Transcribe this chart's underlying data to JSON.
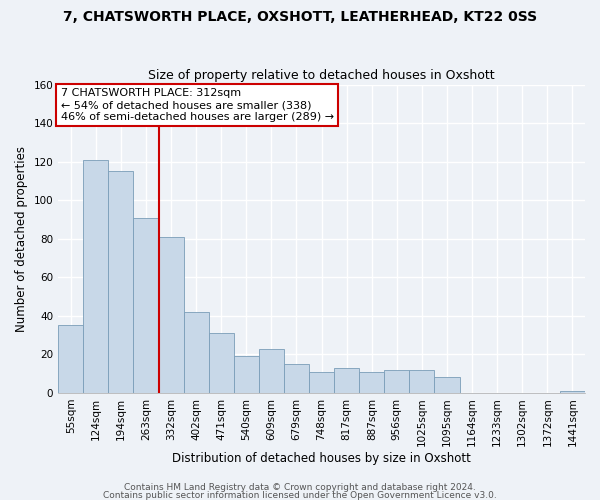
{
  "title": "7, CHATSWORTH PLACE, OXSHOTT, LEATHERHEAD, KT22 0SS",
  "subtitle": "Size of property relative to detached houses in Oxshott",
  "xlabel": "Distribution of detached houses by size in Oxshott",
  "ylabel": "Number of detached properties",
  "bar_labels": [
    "55sqm",
    "124sqm",
    "194sqm",
    "263sqm",
    "332sqm",
    "402sqm",
    "471sqm",
    "540sqm",
    "609sqm",
    "679sqm",
    "748sqm",
    "817sqm",
    "887sqm",
    "956sqm",
    "1025sqm",
    "1095sqm",
    "1164sqm",
    "1233sqm",
    "1302sqm",
    "1372sqm",
    "1441sqm"
  ],
  "bar_values": [
    35,
    121,
    115,
    91,
    81,
    42,
    31,
    19,
    23,
    15,
    11,
    13,
    11,
    12,
    12,
    8,
    0,
    0,
    0,
    0,
    1
  ],
  "bar_color": "#c8d8e8",
  "bar_edge_color": "#7a9db8",
  "marker_color": "#cc0000",
  "annotation_text": "7 CHATSWORTH PLACE: 312sqm\n← 54% of detached houses are smaller (338)\n46% of semi-detached houses are larger (289) →",
  "annotation_box_color": "#ffffff",
  "annotation_box_edge": "#cc0000",
  "ylim": [
    0,
    160
  ],
  "yticks": [
    0,
    20,
    40,
    60,
    80,
    100,
    120,
    140,
    160
  ],
  "footer1": "Contains HM Land Registry data © Crown copyright and database right 2024.",
  "footer2": "Contains public sector information licensed under the Open Government Licence v3.0.",
  "background_color": "#eef2f7",
  "grid_color": "#ffffff",
  "title_fontsize": 10,
  "subtitle_fontsize": 9,
  "axis_label_fontsize": 8.5,
  "tick_fontsize": 7.5,
  "annotation_fontsize": 8,
  "footer_fontsize": 6.5
}
